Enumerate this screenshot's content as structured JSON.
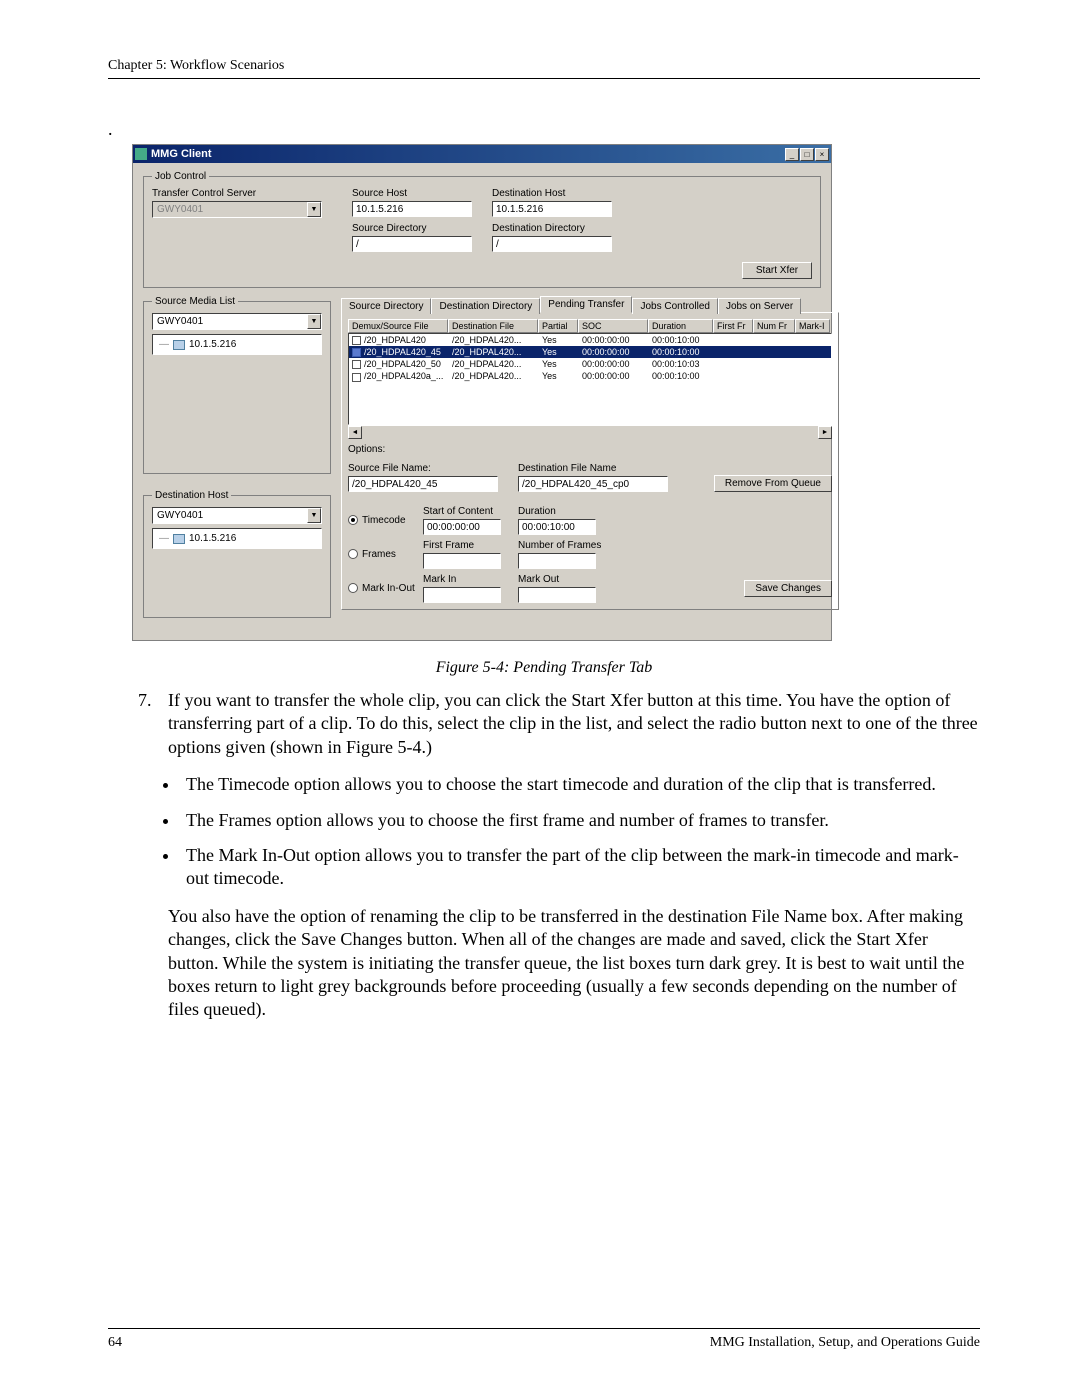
{
  "header": "Chapter 5: Workflow Scenarios",
  "window": {
    "title": "MMG Client",
    "jobControl": {
      "legend": "Job Control",
      "transferControlServerLabel": "Transfer Control Server",
      "transferControlServerValue": "GWY0401",
      "sourceHostLabel": "Source Host",
      "sourceHostValue": "10.1.5.216",
      "destHostLabel": "Destination Host",
      "destHostValue": "10.1.5.216",
      "sourceDirLabel": "Source Directory",
      "sourceDirValue": "/",
      "destDirLabel": "Destination Directory",
      "destDirValue": "/",
      "startXfer": "Start Xfer"
    },
    "sourceMediaList": {
      "legend": "Source Media List",
      "serverValue": "GWY0401",
      "node": "10.1.5.216"
    },
    "destHostPanel": {
      "legend": "Destination Host",
      "serverValue": "GWY0401",
      "node": "10.1.5.216"
    },
    "tabs": {
      "sourceDir": "Source Directory",
      "destDir": "Destination Directory",
      "pending": "Pending Transfer",
      "jobsControlled": "Jobs Controlled",
      "jobsOnServer": "Jobs on Server"
    },
    "table": {
      "headers": {
        "demux": "Demux/Source File",
        "dest": "Destination File",
        "partial": "Partial",
        "soc": "SOC",
        "duration": "Duration",
        "firstFr": "First Fr",
        "numFr": "Num Fr",
        "markI": "Mark-I"
      },
      "rows": [
        {
          "src": "/20_HDPAL420",
          "dst": "/20_HDPAL420...",
          "partial": "Yes",
          "soc": "00:00:00:00",
          "dur": "00:00:10:00",
          "sel": false
        },
        {
          "src": "/20_HDPAL420_45",
          "dst": "/20_HDPAL420...",
          "partial": "Yes",
          "soc": "00:00:00:00",
          "dur": "00:00:10:00",
          "sel": true
        },
        {
          "src": "/20_HDPAL420_50",
          "dst": "/20_HDPAL420...",
          "partial": "Yes",
          "soc": "00:00:00:00",
          "dur": "00:00:10:03",
          "sel": false
        },
        {
          "src": "/20_HDPAL420a_...",
          "dst": "/20_HDPAL420...",
          "partial": "Yes",
          "soc": "00:00:00:00",
          "dur": "00:00:10:00",
          "sel": false
        }
      ]
    },
    "options": {
      "label": "Options:",
      "sourceFileNameLabel": "Source File Name:",
      "sourceFileName": "/20_HDPAL420_45",
      "destFileNameLabel": "Destination File Name",
      "destFileName": "/20_HDPAL420_45_cp0",
      "removeFromQueue": "Remove From Queue",
      "timecodeLabel": "Timecode",
      "framesLabel": "Frames",
      "markInOutLabel": "Mark In-Out",
      "startOfContentLabel": "Start of Content",
      "startOfContent": "00:00:00:00",
      "durationLabel": "Duration",
      "duration": "00:00:10:00",
      "firstFrameLabel": "First Frame",
      "numberOfFramesLabel": "Number of Frames",
      "markInLabel": "Mark In",
      "markOutLabel": "Mark Out",
      "saveChanges": "Save Changes"
    }
  },
  "figureCaption": "Figure 5-4: Pending Transfer Tab",
  "step": {
    "num": "7.",
    "text": "If you want to transfer the whole clip, you can click the Start Xfer button at this time. You have the option of transferring part of a clip. To do this, select the clip in the list, and select the radio button next to one of the three options given (shown in Figure 5-4.)"
  },
  "bullets": [
    "The Timecode option allows you to choose the start timecode and duration of the clip that is transferred.",
    "The Frames option allows you to choose the first frame and number of frames to transfer.",
    "The Mark In-Out option allows you to transfer the part of the clip between the mark-in timecode and mark-out timecode."
  ],
  "afterPara": "You also have the option of renaming the clip to be transferred in the destination File Name box. After making changes, click the Save Changes button. When all of the changes are made and saved, click the Start Xfer button. While the system is initiating the transfer queue, the list boxes turn dark grey. It is best to wait until the boxes return to light grey backgrounds before proceeding (usually a few seconds depending on the number of files queued).",
  "footer": {
    "pageNum": "64",
    "docTitle": "MMG Installation, Setup, and Operations Guide"
  }
}
